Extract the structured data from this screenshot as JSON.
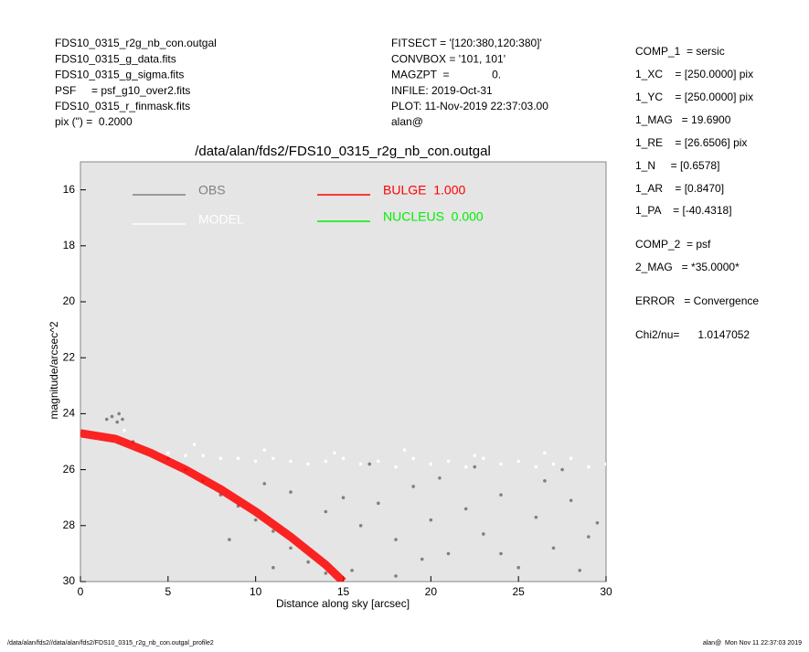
{
  "header": {
    "left": [
      "FDS10_0315_r2g_nb_con.outgal",
      "FDS10_0315_g_data.fits",
      "FDS10_0315_g_sigma.fits",
      "PSF     = psf_g10_over2.fits",
      "FDS10_0315_r_finmask.fits",
      "pix (\") =  0.2000"
    ],
    "middle": [
      "FITSECT = '[120:380,120:380]'",
      "CONVBOX = '101, 101'",
      "MAGZPT  =              0.",
      "INFILE: 2019-Oct-31",
      "PLOT: 11-Nov-2019 22:37:03.00",
      "alan@"
    ],
    "right": [
      "COMP_1  = sersic",
      "1_XC    = [250.0000] pix",
      "1_YC    = [250.0000] pix",
      "1_MAG   = 19.6900",
      "1_RE    = [26.6506] pix",
      "1_N     = [0.6578]",
      "1_AR    = [0.8470]",
      "1_PA    = [-40.4318]",
      "COMP_2  = psf",
      "2_MAG   = *35.0000*",
      "ERROR   = Convergence",
      "Chi2/nu=      1.0147052"
    ]
  },
  "chart_data": {
    "type": "scatter",
    "title": "/data/alan/fds2/FDS10_0315_r2g_nb_con.outgal",
    "x_label": "Distance along sky [arcsec]",
    "y_label": "magnitude/arcsec^2",
    "xlim": [
      0,
      30
    ],
    "xticks": [
      0,
      5,
      10,
      15,
      20,
      25,
      30
    ],
    "ylim": [
      30,
      15
    ],
    "yticks": [
      16,
      18,
      20,
      22,
      24,
      26,
      28,
      30
    ],
    "series": [
      {
        "name": "OBS",
        "color": "#808080",
        "mark": "points",
        "x": [
          1.5,
          1.8,
          2.1,
          2.4,
          2.2,
          3,
          4,
          5,
          6,
          7,
          8,
          9,
          10,
          11,
          12,
          13,
          14,
          12,
          14,
          15,
          16,
          17,
          18,
          19,
          20,
          21,
          22,
          23,
          24,
          25,
          26,
          27,
          28,
          29,
          29.5,
          10.5,
          15.5,
          18,
          20.5,
          24,
          26.5,
          28.5,
          16.5,
          22.5,
          8.5,
          11,
          19.5,
          27.5
        ],
        "values": [
          24.2,
          24.1,
          24.3,
          24.2,
          24.0,
          25.0,
          25.3,
          25.6,
          26.0,
          26.4,
          26.9,
          27.3,
          27.8,
          28.2,
          28.8,
          29.3,
          29.7,
          26.8,
          27.5,
          27.0,
          28.0,
          27.2,
          28.5,
          26.6,
          27.8,
          29.0,
          27.4,
          28.3,
          26.9,
          29.5,
          27.7,
          28.8,
          27.1,
          28.4,
          27.9,
          26.5,
          29.6,
          29.8,
          26.3,
          29.0,
          26.4,
          29.6,
          25.8,
          25.9,
          28.5,
          29.5,
          29.2,
          26.0
        ]
      },
      {
        "name": "MODEL",
        "color": "#ffffff",
        "mark": "points",
        "x": [
          0,
          1,
          2,
          3,
          4,
          5,
          6,
          7,
          8,
          9,
          10,
          11,
          12,
          13,
          14,
          15,
          16,
          17,
          18,
          19,
          20,
          21,
          22,
          23,
          24,
          25,
          26,
          27,
          28,
          29,
          30,
          2.5,
          6.5,
          10.5,
          14.5,
          18.5,
          22.5,
          26.5
        ],
        "values": [
          24.8,
          24.9,
          25.0,
          25.2,
          25.3,
          25.4,
          25.5,
          25.5,
          25.6,
          25.6,
          25.7,
          25.6,
          25.7,
          25.8,
          25.7,
          25.6,
          25.8,
          25.7,
          25.9,
          25.6,
          25.8,
          25.7,
          25.9,
          25.6,
          25.8,
          25.7,
          25.9,
          25.8,
          25.6,
          25.9,
          25.8,
          24.6,
          25.1,
          25.3,
          25.4,
          25.3,
          25.5,
          25.4
        ]
      },
      {
        "name": "BULGE  1.000",
        "color": "#ff0000",
        "mark": "line",
        "x": [
          0,
          2,
          4,
          6,
          8,
          10,
          12,
          13,
          14,
          15
        ],
        "values": [
          24.7,
          24.9,
          25.4,
          26.0,
          26.7,
          27.5,
          28.4,
          28.9,
          29.4,
          30.0
        ]
      },
      {
        "name": "NUCLEUS  0.000",
        "color": "#00ee00",
        "mark": "line",
        "x": [],
        "values": []
      }
    ]
  },
  "footer": {
    "left": "/data/alan/fds2//data/alan/fds2/FDS10_0315_r2g_nb_con.outgal_profile2",
    "right": "alan@  Mon Nov 11 22:37:03 2019"
  }
}
